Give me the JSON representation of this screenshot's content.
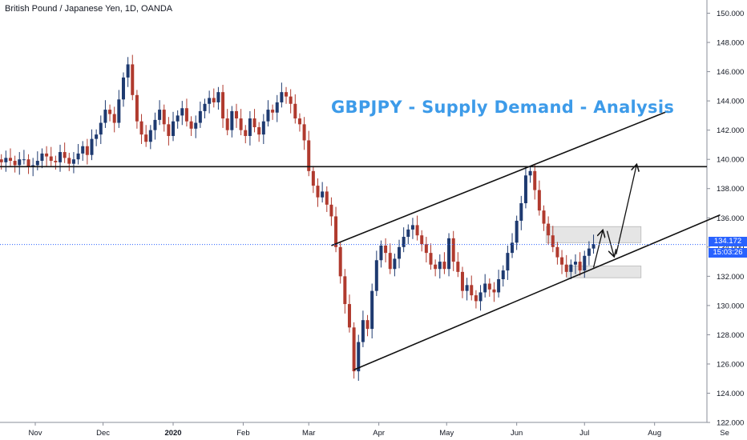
{
  "header": {
    "symbol_title": "British Pound / Japanese Yen, 1D, OANDA"
  },
  "annotation": {
    "headline": "GBPJPY - Supply Demand - Analysis"
  },
  "price_axis": {
    "current_price_label": "134.172",
    "countdown_label": "15:03:26",
    "tag_color": "#2962ff"
  },
  "colors": {
    "bull": "#1e3a70",
    "bear": "#b03a2e",
    "headline": "#3d9be9",
    "zone_fill": "#e3e3e3"
  },
  "chart_data": {
    "type": "candlestick",
    "title": "British Pound / Japanese Yen, 1D, OANDA",
    "ylim": [
      121.5,
      150.8
    ],
    "y_ticks": [
      "122.000",
      "124.000",
      "126.000",
      "128.000",
      "130.000",
      "132.000",
      "134.000",
      "136.000",
      "138.000",
      "140.000",
      "142.000",
      "144.000",
      "146.000",
      "148.000",
      "150.000"
    ],
    "x_ticks": [
      {
        "label": "Nov",
        "day": 30
      },
      {
        "label": "Dec",
        "day": 60
      },
      {
        "label": "2020",
        "day": 91,
        "bold": true
      },
      {
        "label": "Feb",
        "day": 122
      },
      {
        "label": "Mar",
        "day": 151
      },
      {
        "label": "Apr",
        "day": 182
      },
      {
        "label": "May",
        "day": 212
      },
      {
        "label": "Jun",
        "day": 243
      },
      {
        "label": "Jul",
        "day": 273
      },
      {
        "label": "Aug",
        "day": 304
      },
      {
        "label": "Se",
        "day": 335
      }
    ],
    "current_price": 134.172,
    "closes": [
      {
        "day": 15,
        "close": 139.8
      },
      {
        "day": 17,
        "close": 140.1
      },
      {
        "day": 19,
        "close": 139.9
      },
      {
        "day": 21,
        "close": 139.6
      },
      {
        "day": 23,
        "close": 140.0
      },
      {
        "day": 25,
        "close": 140.0
      },
      {
        "day": 27,
        "close": 139.5
      },
      {
        "day": 29,
        "close": 139.6
      },
      {
        "day": 31,
        "close": 139.9
      },
      {
        "day": 33,
        "close": 140.4
      },
      {
        "day": 35,
        "close": 140.2
      },
      {
        "day": 37,
        "close": 139.9
      },
      {
        "day": 39,
        "close": 139.8
      },
      {
        "day": 41,
        "close": 140.5
      },
      {
        "day": 43,
        "close": 140.1
      },
      {
        "day": 45,
        "close": 139.7
      },
      {
        "day": 47,
        "close": 140.0
      },
      {
        "day": 49,
        "close": 140.4
      },
      {
        "day": 51,
        "close": 140.9
      },
      {
        "day": 53,
        "close": 140.3
      },
      {
        "day": 55,
        "close": 141.4
      },
      {
        "day": 57,
        "close": 141.7
      },
      {
        "day": 59,
        "close": 142.5
      },
      {
        "day": 61,
        "close": 143.4
      },
      {
        "day": 63,
        "close": 143.1
      },
      {
        "day": 65,
        "close": 142.5
      },
      {
        "day": 67,
        "close": 144.1
      },
      {
        "day": 69,
        "close": 145.6
      },
      {
        "day": 71,
        "close": 146.5
      },
      {
        "day": 73,
        "close": 144.4
      },
      {
        "day": 75,
        "close": 142.6
      },
      {
        "day": 77,
        "close": 141.7
      },
      {
        "day": 79,
        "close": 141.2
      },
      {
        "day": 81,
        "close": 142.0
      },
      {
        "day": 83,
        "close": 142.7
      },
      {
        "day": 85,
        "close": 143.4
      },
      {
        "day": 87,
        "close": 142.4
      },
      {
        "day": 89,
        "close": 141.6
      },
      {
        "day": 91,
        "close": 142.6
      },
      {
        "day": 93,
        "close": 143.0
      },
      {
        "day": 95,
        "close": 143.5
      },
      {
        "day": 97,
        "close": 142.6
      },
      {
        "day": 99,
        "close": 142.1
      },
      {
        "day": 101,
        "close": 142.5
      },
      {
        "day": 103,
        "close": 143.3
      },
      {
        "day": 105,
        "close": 143.8
      },
      {
        "day": 107,
        "close": 144.2
      },
      {
        "day": 109,
        "close": 143.9
      },
      {
        "day": 111,
        "close": 144.6
      },
      {
        "day": 113,
        "close": 142.8
      },
      {
        "day": 115,
        "close": 142.0
      },
      {
        "day": 117,
        "close": 143.3
      },
      {
        "day": 119,
        "close": 142.8
      },
      {
        "day": 121,
        "close": 142.0
      },
      {
        "day": 123,
        "close": 141.6
      },
      {
        "day": 125,
        "close": 142.8
      },
      {
        "day": 127,
        "close": 142.2
      },
      {
        "day": 129,
        "close": 141.7
      },
      {
        "day": 131,
        "close": 142.6
      },
      {
        "day": 133,
        "close": 143.4
      },
      {
        "day": 135,
        "close": 143.2
      },
      {
        "day": 137,
        "close": 143.9
      },
      {
        "day": 139,
        "close": 144.6
      },
      {
        "day": 141,
        "close": 144.3
      },
      {
        "day": 143,
        "close": 143.8
      },
      {
        "day": 145,
        "close": 142.8
      },
      {
        "day": 147,
        "close": 142.4
      },
      {
        "day": 149,
        "close": 141.3
      },
      {
        "day": 151,
        "close": 139.2
      },
      {
        "day": 153,
        "close": 138.2
      },
      {
        "day": 155,
        "close": 137.4
      },
      {
        "day": 157,
        "close": 137.8
      },
      {
        "day": 159,
        "close": 136.9
      },
      {
        "day": 161,
        "close": 136.1
      },
      {
        "day": 163,
        "close": 134.0
      },
      {
        "day": 165,
        "close": 132.0
      },
      {
        "day": 167,
        "close": 130.1
      },
      {
        "day": 169,
        "close": 128.5
      },
      {
        "day": 171,
        "close": 125.5
      },
      {
        "day": 173,
        "close": 127.5
      },
      {
        "day": 175,
        "close": 129.0
      },
      {
        "day": 177,
        "close": 128.4
      },
      {
        "day": 179,
        "close": 131.0
      },
      {
        "day": 181,
        "close": 133.1
      },
      {
        "day": 183,
        "close": 134.1
      },
      {
        "day": 185,
        "close": 133.6
      },
      {
        "day": 187,
        "close": 132.5
      },
      {
        "day": 189,
        "close": 133.2
      },
      {
        "day": 191,
        "close": 134.0
      },
      {
        "day": 193,
        "close": 134.7
      },
      {
        "day": 195,
        "close": 135.2
      },
      {
        "day": 197,
        "close": 135.5
      },
      {
        "day": 199,
        "close": 134.8
      },
      {
        "day": 201,
        "close": 134.2
      },
      {
        "day": 203,
        "close": 133.6
      },
      {
        "day": 205,
        "close": 132.8
      },
      {
        "day": 207,
        "close": 132.5
      },
      {
        "day": 209,
        "close": 133.0
      },
      {
        "day": 211,
        "close": 132.5
      },
      {
        "day": 213,
        "close": 134.6
      },
      {
        "day": 215,
        "close": 133.0
      },
      {
        "day": 217,
        "close": 132.3
      },
      {
        "day": 219,
        "close": 131.0
      },
      {
        "day": 221,
        "close": 131.4
      },
      {
        "day": 223,
        "close": 130.7
      },
      {
        "day": 225,
        "close": 130.3
      },
      {
        "day": 227,
        "close": 130.9
      },
      {
        "day": 229,
        "close": 131.5
      },
      {
        "day": 231,
        "close": 131.1
      },
      {
        "day": 233,
        "close": 130.9
      },
      {
        "day": 235,
        "close": 131.8
      },
      {
        "day": 237,
        "close": 132.4
      },
      {
        "day": 239,
        "close": 133.6
      },
      {
        "day": 241,
        "close": 134.3
      },
      {
        "day": 243,
        "close": 135.8
      },
      {
        "day": 245,
        "close": 137.0
      },
      {
        "day": 247,
        "close": 138.9
      },
      {
        "day": 249,
        "close": 139.2
      },
      {
        "day": 251,
        "close": 137.9
      },
      {
        "day": 253,
        "close": 136.5
      },
      {
        "day": 255,
        "close": 135.6
      },
      {
        "day": 257,
        "close": 134.8
      },
      {
        "day": 259,
        "close": 134.0
      },
      {
        "day": 261,
        "close": 133.3
      },
      {
        "day": 263,
        "close": 132.8
      },
      {
        "day": 265,
        "close": 132.3
      },
      {
        "day": 267,
        "close": 132.8
      },
      {
        "day": 269,
        "close": 133.0
      },
      {
        "day": 271,
        "close": 132.4
      },
      {
        "day": 273,
        "close": 133.4
      },
      {
        "day": 275,
        "close": 133.9
      },
      {
        "day": 277,
        "close": 134.2
      }
    ]
  }
}
